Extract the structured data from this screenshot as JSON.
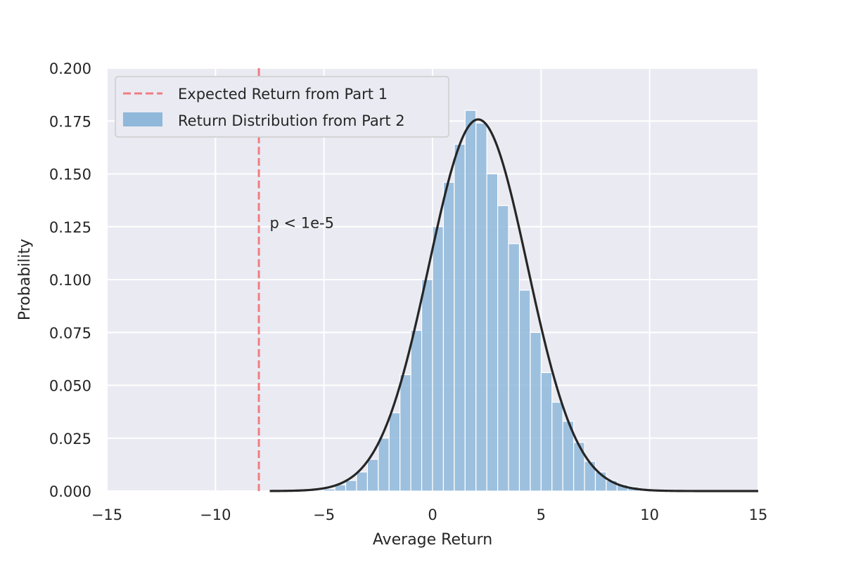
{
  "chart_data": {
    "type": "bar",
    "title": "",
    "xlabel": "Average Return",
    "ylabel": "Probability",
    "xlim": [
      -15,
      15
    ],
    "ylim": [
      0,
      0.2
    ],
    "x_ticks": [
      -15,
      -10,
      -5,
      0,
      5,
      10,
      15
    ],
    "x_tick_labels": [
      "−15",
      "−10",
      "−5",
      "0",
      "5",
      "10",
      "15"
    ],
    "y_ticks": [
      0,
      0.025,
      0.05,
      0.075,
      0.1,
      0.125,
      0.15,
      0.175,
      0.2
    ],
    "y_tick_labels": [
      "0.000",
      "0.025",
      "0.050",
      "0.075",
      "0.100",
      "0.125",
      "0.150",
      "0.175",
      "0.200"
    ],
    "grid": true,
    "legend_position": "top-left",
    "legend": [
      {
        "label": "Expected Return from Part 1",
        "kind": "dashed-line",
        "color": "#f07d82"
      },
      {
        "label": "Return Distribution from Part 2",
        "kind": "patch",
        "color": "#8fb8da"
      }
    ],
    "histogram": {
      "name": "Return Distribution from Part 2",
      "color": "#8fb8da",
      "bin_edges": [
        -5.0,
        -4.5,
        -4.0,
        -3.5,
        -3.0,
        -2.5,
        -2.0,
        -1.5,
        -1.0,
        -0.5,
        0.0,
        0.5,
        1.0,
        1.5,
        2.0,
        2.5,
        3.0,
        3.5,
        4.0,
        4.5,
        5.0,
        5.5,
        6.0,
        6.5,
        7.0,
        7.5,
        8.0,
        8.5,
        9.0,
        9.5,
        10.0
      ],
      "values": [
        0.001,
        0.003,
        0.005,
        0.009,
        0.015,
        0.025,
        0.037,
        0.055,
        0.076,
        0.1,
        0.125,
        0.146,
        0.164,
        0.18,
        0.174,
        0.15,
        0.135,
        0.117,
        0.095,
        0.075,
        0.056,
        0.042,
        0.033,
        0.023,
        0.014,
        0.009,
        0.005,
        0.003,
        0.002,
        0.001
      ]
    },
    "vertical_line": {
      "name": "Expected Return from Part 1",
      "x": -8.0,
      "color": "#f07d82",
      "style": "dashed"
    },
    "fit_curve": {
      "type": "normal",
      "mean": 2.1,
      "std": 2.27,
      "color": "#262626",
      "x_range": [
        -7.5,
        15
      ]
    },
    "annotation": {
      "text": "p < 1e-5",
      "x": -7.5,
      "y": 0.127
    }
  }
}
